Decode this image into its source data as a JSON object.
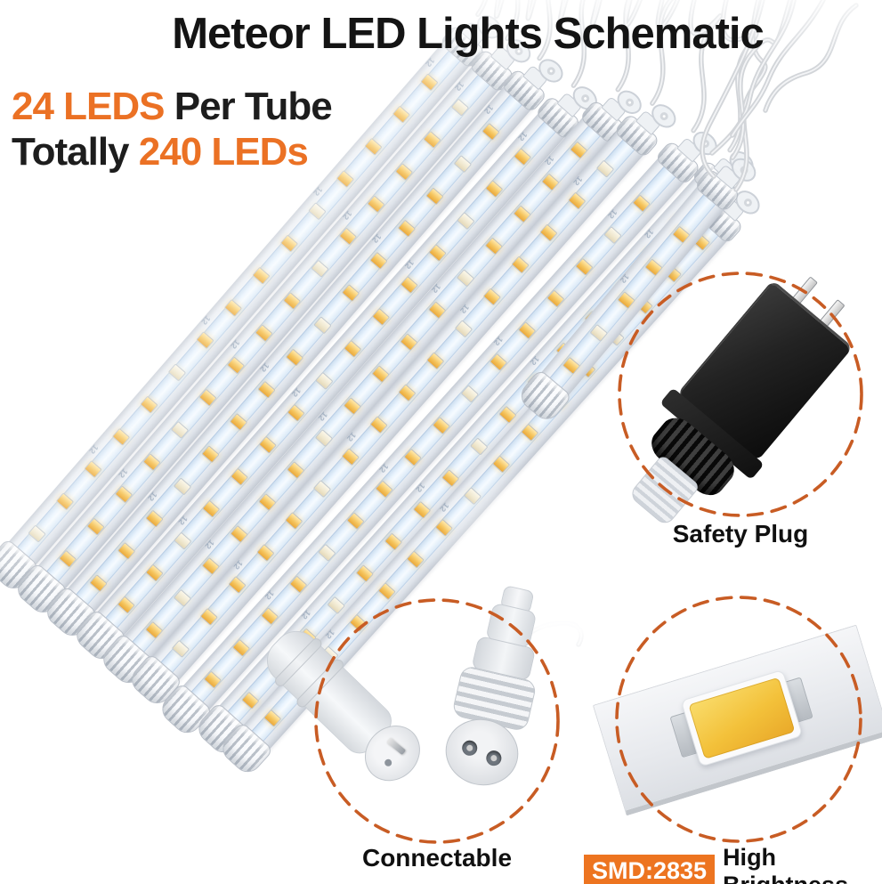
{
  "title": "Meteor LED Lights Schematic",
  "subtitle": {
    "leds_per_tube": "24 LEDS",
    "per_tube": " Per Tube",
    "totally": "Totally ",
    "total_leds": "240 LEDs"
  },
  "callouts": {
    "safety_plug": {
      "label": "Safety Plug"
    },
    "connectable": {
      "label": "Connectable"
    },
    "smd": {
      "badge": "SMD:2835",
      "label": "High Brightness"
    }
  },
  "tubes": {
    "count": 10,
    "leds_per_tube": 24,
    "pcb_mark": "12"
  },
  "colors": {
    "accent_orange": "#EB7124",
    "dash_orange": "#C85C24",
    "smd_badge_bg": "#ED7420",
    "led_warm": "#F2BC4A",
    "strip_blue": "#DCE8F6",
    "title_black": "#141414"
  }
}
